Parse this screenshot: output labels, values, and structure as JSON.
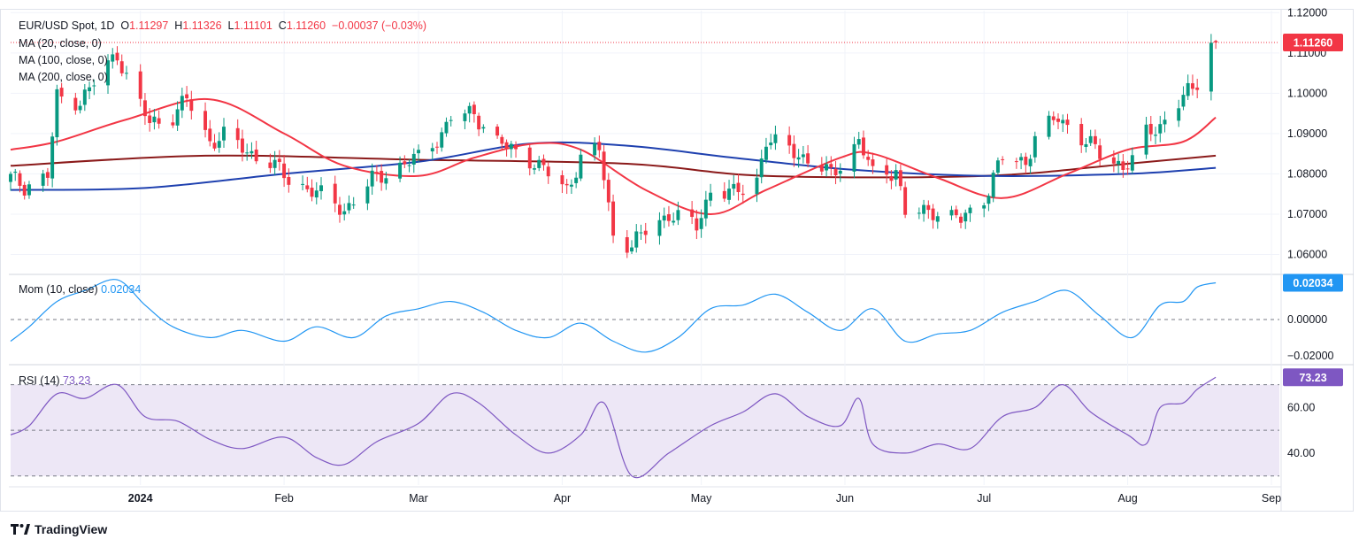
{
  "header": {
    "symbol": "EUR/USD Spot, 1D",
    "ohlc": [
      {
        "k": "O",
        "v": "1.11297"
      },
      {
        "k": "H",
        "v": "1.11326"
      },
      {
        "k": "L",
        "v": "1.11101"
      },
      {
        "k": "C",
        "v": "1.11260"
      }
    ],
    "change": "−0.00037 (−0.03%)"
  },
  "legends": {
    "ma20": "MA (20, close, 0)",
    "ma100": "MA (100, close, 0)",
    "ma200": "MA (200, close, 0)",
    "mom": "Mom (10, close)",
    "mom_value": "0.02034",
    "rsi": "RSI (14)",
    "rsi_value": "73.23"
  },
  "badges": {
    "price": "1.11260",
    "mom": "0.02034",
    "rsi": "73.23"
  },
  "brand": "TradingView",
  "colors": {
    "up": "#089981",
    "down": "#f23645",
    "ma20": "#f23645",
    "ma100": "#1e40af",
    "ma200": "#8b1a1a",
    "mom": "#2196f3",
    "rsi": "#7e57c2",
    "rsi_band": "#ede7f6"
  },
  "chart_data": [
    {
      "type": "candlestick",
      "title": "EUR/USD Spot, 1D",
      "y_ticks": [
        "1.12000",
        "1.11000",
        "1.10000",
        "1.09000",
        "1.08000",
        "1.07000",
        "1.06000"
      ],
      "ylim": [
        1.0555,
        1.1205
      ],
      "x_ticks": [
        {
          "label": "2024",
          "date": "2024-01-01",
          "bold": true
        },
        {
          "label": "Feb",
          "date": "2024-02-01"
        },
        {
          "label": "Mar",
          "date": "2024-03-01"
        },
        {
          "label": "Apr",
          "date": "2024-04-01"
        },
        {
          "label": "May",
          "date": "2024-05-01"
        },
        {
          "label": "Jun",
          "date": "2024-06-01"
        },
        {
          "label": "Jul",
          "date": "2024-07-01"
        },
        {
          "label": "Aug",
          "date": "2024-08-01"
        },
        {
          "label": "Sep",
          "date": "2024-09-01"
        }
      ],
      "close_anchors": [
        [
          "2023-12-04",
          1.079
        ],
        [
          "2023-12-07",
          1.077
        ],
        [
          "2023-12-12",
          1.0795
        ],
        [
          "2023-12-14",
          1.099
        ],
        [
          "2023-12-19",
          1.098
        ],
        [
          "2023-12-21",
          1.101
        ],
        [
          "2023-12-27",
          1.11
        ],
        [
          "2023-12-29",
          1.104
        ],
        [
          "2024-01-03",
          1.0925
        ],
        [
          "2024-01-08",
          1.0945
        ],
        [
          "2024-01-11",
          1.0985
        ],
        [
          "2024-01-16",
          1.088
        ],
        [
          "2024-01-19",
          1.0895
        ],
        [
          "2024-01-24",
          1.0855
        ],
        [
          "2024-01-29",
          1.083
        ],
        [
          "2024-02-02",
          1.0785
        ],
        [
          "2024-02-07",
          1.076
        ],
        [
          "2024-02-14",
          1.071
        ],
        [
          "2024-02-20",
          1.0785
        ],
        [
          "2024-02-26",
          1.082
        ],
        [
          "2024-03-01",
          1.084
        ],
        [
          "2024-03-06",
          1.09
        ],
        [
          "2024-03-08",
          1.094
        ],
        [
          "2024-03-13",
          1.095
        ],
        [
          "2024-03-18",
          1.088
        ],
        [
          "2024-03-21",
          1.086
        ],
        [
          "2024-03-26",
          1.083
        ],
        [
          "2024-04-02",
          1.076
        ],
        [
          "2024-04-05",
          1.084
        ],
        [
          "2024-04-09",
          1.086
        ],
        [
          "2024-04-12",
          1.065
        ],
        [
          "2024-04-16",
          1.062
        ],
        [
          "2024-04-19",
          1.066
        ],
        [
          "2024-04-24",
          1.07
        ],
        [
          "2024-04-30",
          1.067
        ],
        [
          "2024-05-03",
          1.076
        ],
        [
          "2024-05-08",
          1.075
        ],
        [
          "2024-05-13",
          1.079
        ],
        [
          "2024-05-15",
          1.088
        ],
        [
          "2024-05-21",
          1.086
        ],
        [
          "2024-05-24",
          1.083
        ],
        [
          "2024-05-29",
          1.08
        ],
        [
          "2024-06-04",
          1.088
        ],
        [
          "2024-06-07",
          1.08
        ],
        [
          "2024-06-12",
          1.081
        ],
        [
          "2024-06-14",
          1.07
        ],
        [
          "2024-06-20",
          1.071
        ],
        [
          "2024-06-26",
          1.0685
        ],
        [
          "2024-07-01",
          1.074
        ],
        [
          "2024-07-05",
          1.084
        ],
        [
          "2024-07-10",
          1.083
        ],
        [
          "2024-07-12",
          1.089
        ],
        [
          "2024-07-17",
          1.094
        ],
        [
          "2024-07-22",
          1.089
        ],
        [
          "2024-07-26",
          1.085
        ],
        [
          "2024-07-31",
          1.082
        ],
        [
          "2024-08-02",
          1.083
        ],
        [
          "2024-08-05",
          1.09
        ],
        [
          "2024-08-08",
          1.092
        ],
        [
          "2024-08-13",
          1.099
        ],
        [
          "2024-08-15",
          1.101
        ],
        [
          "2024-08-16",
          1.103
        ],
        [
          "2024-08-19",
          1.113
        ],
        [
          "2024-08-20",
          1.1126
        ]
      ],
      "ma20": [
        [
          "2023-12-04",
          1.086
        ],
        [
          "2023-12-14",
          1.088
        ],
        [
          "2023-12-29",
          1.0935
        ],
        [
          "2024-01-16",
          1.0985
        ],
        [
          "2024-02-01",
          1.09
        ],
        [
          "2024-02-14",
          1.082
        ],
        [
          "2024-03-01",
          1.0795
        ],
        [
          "2024-03-13",
          1.084
        ],
        [
          "2024-03-26",
          1.0875
        ],
        [
          "2024-04-05",
          1.086
        ],
        [
          "2024-04-19",
          1.076
        ],
        [
          "2024-05-03",
          1.07
        ],
        [
          "2024-05-15",
          1.076
        ],
        [
          "2024-05-31",
          1.084
        ],
        [
          "2024-06-07",
          1.085
        ],
        [
          "2024-06-21",
          1.079
        ],
        [
          "2024-07-05",
          1.074
        ],
        [
          "2024-07-19",
          1.08
        ],
        [
          "2024-08-01",
          1.086
        ],
        [
          "2024-08-13",
          1.088
        ],
        [
          "2024-08-20",
          1.094
        ]
      ],
      "ma100": [
        [
          "2023-12-04",
          1.076
        ],
        [
          "2024-01-02",
          1.0765
        ],
        [
          "2024-02-01",
          1.08
        ],
        [
          "2024-03-01",
          1.083
        ],
        [
          "2024-03-25",
          1.0875
        ],
        [
          "2024-04-15",
          1.087
        ],
        [
          "2024-05-08",
          1.084
        ],
        [
          "2024-06-03",
          1.081
        ],
        [
          "2024-07-01",
          1.0795
        ],
        [
          "2024-08-01",
          1.08
        ],
        [
          "2024-08-20",
          1.0815
        ]
      ],
      "ma200": [
        [
          "2023-12-04",
          1.082
        ],
        [
          "2024-01-15",
          1.0845
        ],
        [
          "2024-03-01",
          1.0835
        ],
        [
          "2024-04-15",
          1.0825
        ],
        [
          "2024-05-15",
          1.0795
        ],
        [
          "2024-07-01",
          1.0795
        ],
        [
          "2024-08-01",
          1.0825
        ],
        [
          "2024-08-20",
          1.0845
        ]
      ]
    },
    {
      "type": "line",
      "title": "Mom (10, close)",
      "y_ticks": [
        "0.00000",
        "−0.02000"
      ],
      "y_tick_values": [
        0,
        -0.02
      ],
      "ylim": [
        -0.024,
        0.024
      ],
      "series": [
        {
          "name": "Mom (10, close)",
          "values": [
            [
              "2023-12-04",
              -0.012
            ],
            [
              "2023-12-08",
              -0.004
            ],
            [
              "2023-12-14",
              0.01
            ],
            [
              "2023-12-20",
              0.016
            ],
            [
              "2023-12-27",
              0.022
            ],
            [
              "2024-01-02",
              0.008
            ],
            [
              "2024-01-08",
              -0.004
            ],
            [
              "2024-01-16",
              -0.01
            ],
            [
              "2024-01-23",
              -0.006
            ],
            [
              "2024-02-01",
              -0.012
            ],
            [
              "2024-02-08",
              -0.004
            ],
            [
              "2024-02-16",
              -0.01
            ],
            [
              "2024-02-23",
              0.002
            ],
            [
              "2024-03-01",
              0.006
            ],
            [
              "2024-03-08",
              0.01
            ],
            [
              "2024-03-15",
              0.004
            ],
            [
              "2024-03-22",
              -0.006
            ],
            [
              "2024-03-29",
              -0.01
            ],
            [
              "2024-04-05",
              -0.002
            ],
            [
              "2024-04-12",
              -0.012
            ],
            [
              "2024-04-19",
              -0.018
            ],
            [
              "2024-04-26",
              -0.01
            ],
            [
              "2024-05-03",
              0.006
            ],
            [
              "2024-05-10",
              0.008
            ],
            [
              "2024-05-17",
              0.014
            ],
            [
              "2024-05-24",
              0.004
            ],
            [
              "2024-05-31",
              -0.006
            ],
            [
              "2024-06-07",
              0.006
            ],
            [
              "2024-06-14",
              -0.012
            ],
            [
              "2024-06-21",
              -0.008
            ],
            [
              "2024-06-28",
              -0.006
            ],
            [
              "2024-07-05",
              0.004
            ],
            [
              "2024-07-12",
              0.01
            ],
            [
              "2024-07-19",
              0.016
            ],
            [
              "2024-07-26",
              0.002
            ],
            [
              "2024-08-02",
              -0.01
            ],
            [
              "2024-08-08",
              0.008
            ],
            [
              "2024-08-13",
              0.01
            ],
            [
              "2024-08-16",
              0.018
            ],
            [
              "2024-08-20",
              0.02034
            ]
          ]
        }
      ]
    },
    {
      "type": "line",
      "title": "RSI (14)",
      "y_ticks": [
        "60.00",
        "40.00"
      ],
      "y_tick_values": [
        60,
        40
      ],
      "bands": [
        30,
        50,
        70
      ],
      "ylim": [
        26,
        78
      ],
      "series": [
        {
          "name": "RSI (14)",
          "values": [
            [
              "2023-12-04",
              48
            ],
            [
              "2023-12-08",
              52
            ],
            [
              "2023-12-14",
              66
            ],
            [
              "2023-12-20",
              64
            ],
            [
              "2023-12-27",
              70
            ],
            [
              "2024-01-02",
              56
            ],
            [
              "2024-01-09",
              54
            ],
            [
              "2024-01-16",
              46
            ],
            [
              "2024-01-23",
              42
            ],
            [
              "2024-02-01",
              47
            ],
            [
              "2024-02-08",
              38
            ],
            [
              "2024-02-14",
              35
            ],
            [
              "2024-02-21",
              45
            ],
            [
              "2024-03-01",
              53
            ],
            [
              "2024-03-08",
              66
            ],
            [
              "2024-03-14",
              62
            ],
            [
              "2024-03-22",
              48
            ],
            [
              "2024-03-29",
              40
            ],
            [
              "2024-04-05",
              48
            ],
            [
              "2024-04-10",
              62
            ],
            [
              "2024-04-16",
              30
            ],
            [
              "2024-04-24",
              40
            ],
            [
              "2024-05-03",
              52
            ],
            [
              "2024-05-10",
              58
            ],
            [
              "2024-05-17",
              66
            ],
            [
              "2024-05-24",
              56
            ],
            [
              "2024-05-31",
              52
            ],
            [
              "2024-06-04",
              64
            ],
            [
              "2024-06-07",
              44
            ],
            [
              "2024-06-14",
              40
            ],
            [
              "2024-06-21",
              44
            ],
            [
              "2024-06-28",
              42
            ],
            [
              "2024-07-05",
              56
            ],
            [
              "2024-07-12",
              60
            ],
            [
              "2024-07-18",
              70
            ],
            [
              "2024-07-24",
              58
            ],
            [
              "2024-08-01",
              48
            ],
            [
              "2024-08-05",
              44
            ],
            [
              "2024-08-08",
              60
            ],
            [
              "2024-08-13",
              62
            ],
            [
              "2024-08-16",
              68
            ],
            [
              "2024-08-20",
              73.23
            ]
          ]
        }
      ]
    }
  ]
}
